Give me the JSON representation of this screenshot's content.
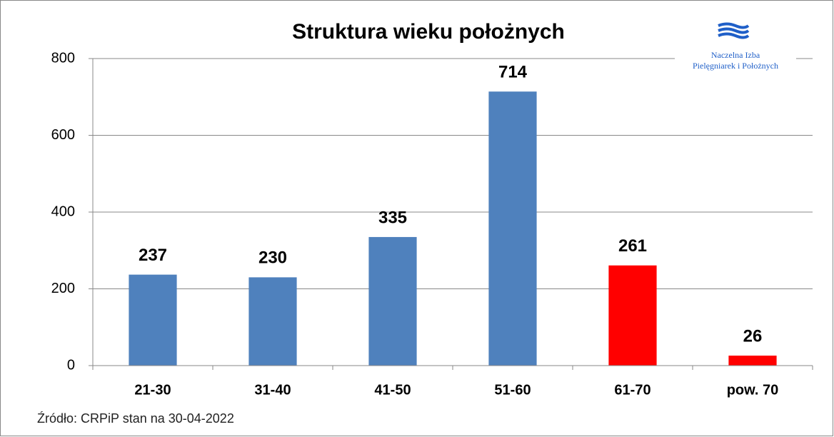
{
  "chart_data": {
    "type": "bar",
    "title": "Struktura wieku położnych",
    "logo_text": [
      "Naczelna Izba",
      "Pielęgniarek i Położnych"
    ],
    "source": "Źródło: CRPiP stan na 30-04-2022",
    "categories": [
      "21-30",
      "31-40",
      "41-50",
      "51-60",
      "61-70",
      "pow. 70"
    ],
    "values": [
      237,
      230,
      335,
      714,
      261,
      26
    ],
    "colors": [
      "#4f81bd",
      "#4f81bd",
      "#4f81bd",
      "#4f81bd",
      "#ff0000",
      "#ff0000"
    ],
    "ylim": [
      0,
      800
    ],
    "yticks": [
      0,
      200,
      400,
      600,
      800
    ],
    "grid": true
  }
}
